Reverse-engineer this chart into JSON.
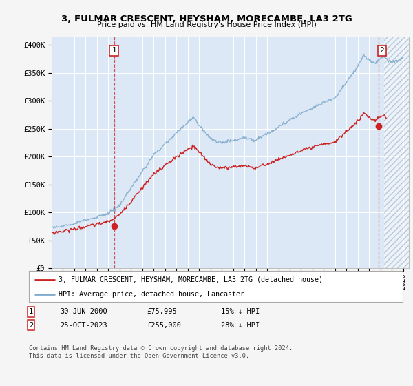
{
  "title": "3, FULMAR CRESCENT, HEYSHAM, MORECAMBE, LA3 2TG",
  "subtitle": "Price paid vs. HM Land Registry's House Price Index (HPI)",
  "ylabel_ticks": [
    "£0",
    "£50K",
    "£100K",
    "£150K",
    "£200K",
    "£250K",
    "£300K",
    "£350K",
    "£400K"
  ],
  "ytick_values": [
    0,
    50000,
    100000,
    150000,
    200000,
    250000,
    300000,
    350000,
    400000
  ],
  "ylim": [
    0,
    415000
  ],
  "xlim_start": 1995.0,
  "xlim_end": 2026.5,
  "hpi_color": "#7eaacc",
  "price_color": "#cc2222",
  "sale1_date": 2000.5,
  "sale1_price": 75995,
  "sale2_date": 2023.82,
  "sale2_price": 255000,
  "legend_entry1": "3, FULMAR CRESCENT, HEYSHAM, MORECAMBE, LA3 2TG (detached house)",
  "legend_entry2": "HPI: Average price, detached house, Lancaster",
  "annotation1_date_str": "30-JUN-2000",
  "annotation1_price_str": "£75,995",
  "annotation1_hpi_str": "15% ↓ HPI",
  "annotation2_date_str": "25-OCT-2023",
  "annotation2_price_str": "£255,000",
  "annotation2_hpi_str": "28% ↓ HPI",
  "footer": "Contains HM Land Registry data © Crown copyright and database right 2024.\nThis data is licensed under the Open Government Licence v3.0.",
  "plot_bg_color": "#dce8f5",
  "hatch_color": "#aabbcc",
  "fig_bg_color": "#f5f5f5"
}
